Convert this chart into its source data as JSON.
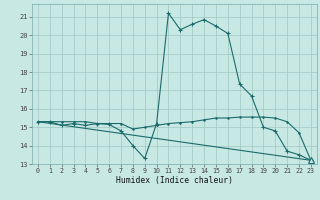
{
  "xlabel": "Humidex (Indice chaleur)",
  "background_color": "#c8e8e4",
  "grid_color": "#a0c8c4",
  "line_color": "#1a6b6b",
  "xlim": [
    -0.5,
    23.5
  ],
  "ylim": [
    13.0,
    21.7
  ],
  "yticks": [
    13,
    14,
    15,
    16,
    17,
    18,
    19,
    20,
    21
  ],
  "xticks": [
    0,
    1,
    2,
    3,
    4,
    5,
    6,
    7,
    8,
    9,
    10,
    11,
    12,
    13,
    14,
    15,
    16,
    17,
    18,
    19,
    20,
    21,
    22,
    23
  ],
  "series1_x": [
    0,
    1,
    2,
    3,
    4,
    5,
    6,
    7,
    8,
    9,
    10,
    11,
    12,
    13,
    14,
    15,
    16,
    17,
    18,
    19,
    20,
    21,
    22,
    23
  ],
  "series1_y": [
    15.3,
    15.3,
    15.1,
    15.2,
    15.1,
    15.2,
    15.15,
    14.8,
    14.0,
    13.3,
    15.2,
    21.2,
    20.3,
    20.6,
    20.85,
    20.5,
    20.1,
    17.35,
    16.7,
    15.0,
    14.8,
    13.7,
    13.5,
    13.2
  ],
  "series2_x": [
    0,
    1,
    2,
    3,
    4,
    5,
    6,
    7,
    8,
    9,
    10,
    11,
    12,
    13,
    14,
    15,
    16,
    17,
    18,
    19,
    20,
    21,
    22,
    23
  ],
  "series2_y": [
    15.3,
    15.3,
    15.3,
    15.3,
    15.3,
    15.2,
    15.2,
    15.2,
    14.9,
    15.0,
    15.1,
    15.2,
    15.25,
    15.3,
    15.4,
    15.5,
    15.5,
    15.55,
    15.55,
    15.55,
    15.5,
    15.3,
    14.7,
    13.2
  ],
  "series3_x": [
    0,
    23
  ],
  "series3_y": [
    15.3,
    13.2
  ],
  "triangle_x": 23,
  "triangle_y": 13.2
}
